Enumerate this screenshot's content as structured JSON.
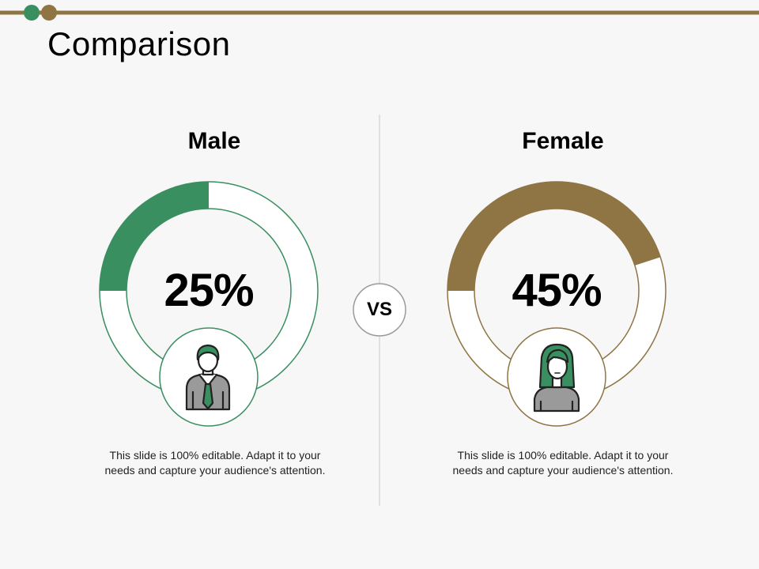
{
  "title": "Comparison",
  "colors": {
    "green": "#3a8f60",
    "brown": "#8f7444",
    "ring": "#ffffff"
  },
  "male": {
    "heading": "Male",
    "percent": 25,
    "percent_label": "25%",
    "icon": "man-with-tie-icon",
    "description": "This slide is 100% editable. Adapt it to your needs and capture your audience's attention."
  },
  "female": {
    "heading": "Female",
    "percent": 45,
    "percent_label": "45%",
    "icon": "woman-icon",
    "description": "This slide is 100% editable. Adapt it to your needs and capture your audience's attention."
  },
  "vs_label": "VS"
}
